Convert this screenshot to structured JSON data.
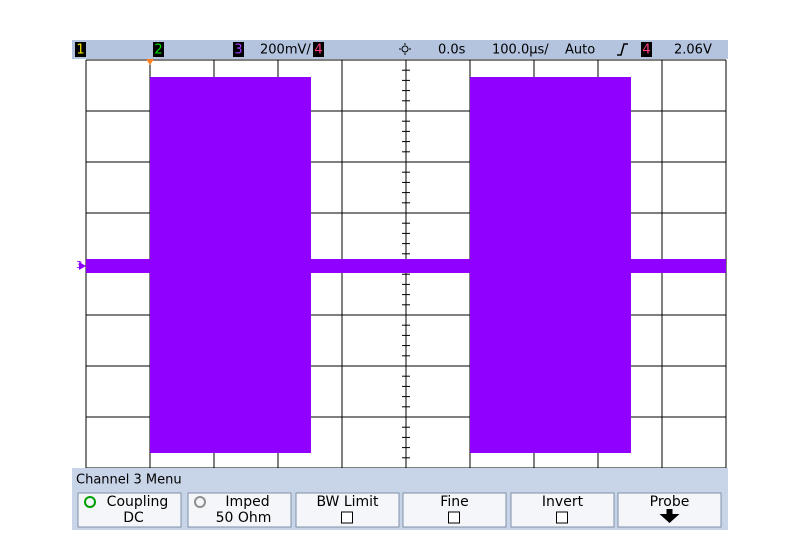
{
  "status_bar": {
    "channels": [
      "1",
      "2",
      "3",
      "4"
    ],
    "ch3_scale": "200mV/",
    "delay": "0.0s",
    "timebase": "100.0µs/",
    "trigger_mode": "Auto",
    "trigger_source": "4",
    "trigger_level": "2.06V"
  },
  "ground_marker": "3",
  "menu": {
    "title": "Channel 3 Menu",
    "softkeys": [
      {
        "label": "Coupling",
        "value": "DC"
      },
      {
        "label": "Imped",
        "value": "50 Ohm"
      },
      {
        "label": "BW Limit"
      },
      {
        "label": "Fine"
      },
      {
        "label": "Invert"
      },
      {
        "label": "Probe"
      }
    ]
  }
}
